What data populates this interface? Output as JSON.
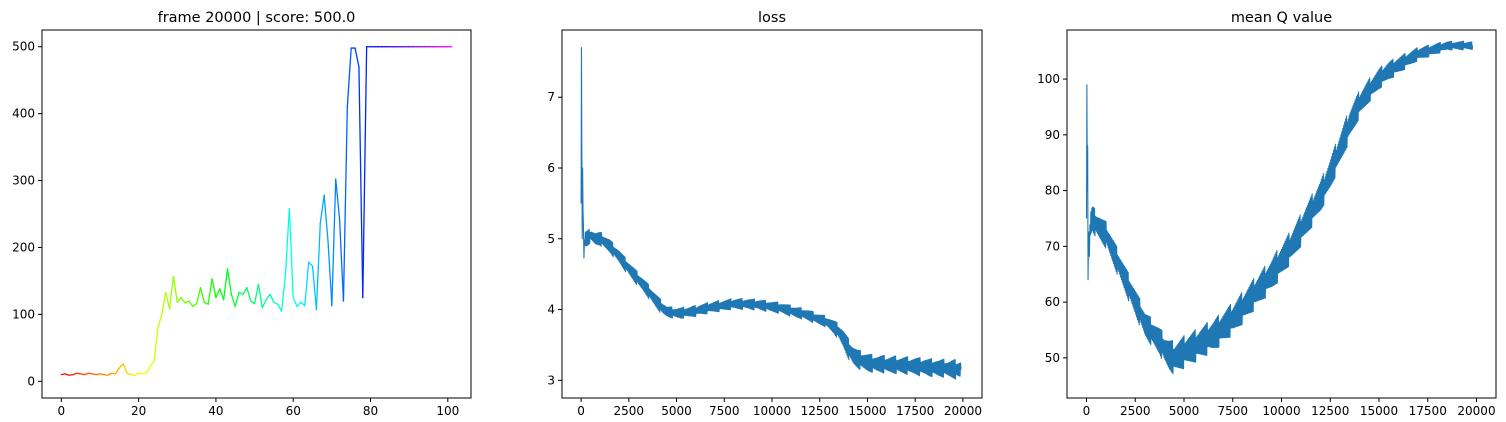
{
  "chart_data": [
    {
      "type": "line",
      "title": "frame 20000 | score: 500.0",
      "xlabel": "",
      "ylabel": "",
      "xlim": [
        -5,
        106
      ],
      "ylim": [
        -25,
        525
      ],
      "xticks": [
        0,
        20,
        40,
        60,
        80,
        100
      ],
      "xtick_labels": [
        "0",
        "20",
        "40",
        "60",
        "80",
        "100"
      ],
      "yticks": [
        0,
        100,
        200,
        300,
        400,
        500
      ],
      "ytick_labels": [
        "0",
        "100",
        "200",
        "300",
        "400",
        "500"
      ],
      "grid": false,
      "color_scheme": "hsv gradient (red to magenta) along x",
      "x": [
        0,
        1,
        2,
        3,
        4,
        5,
        6,
        7,
        8,
        9,
        10,
        11,
        12,
        13,
        14,
        15,
        16,
        17,
        18,
        19,
        20,
        21,
        22,
        23,
        24,
        25,
        26,
        27,
        28,
        29,
        30,
        31,
        32,
        33,
        34,
        35,
        36,
        37,
        38,
        39,
        40,
        41,
        42,
        43,
        44,
        45,
        46,
        47,
        48,
        49,
        50,
        51,
        52,
        53,
        54,
        55,
        56,
        57,
        58,
        59,
        60,
        61,
        62,
        63,
        64,
        65,
        66,
        67,
        68,
        69,
        70,
        71,
        72,
        73,
        74,
        75,
        76,
        77,
        78,
        79,
        80,
        81,
        82,
        83,
        84,
        85,
        86,
        87,
        88,
        89,
        90,
        91,
        92,
        93,
        94,
        95,
        96,
        97,
        98,
        99,
        100,
        101
      ],
      "values": [
        10,
        11,
        9,
        10,
        12,
        11,
        10,
        12,
        11,
        10,
        11,
        10,
        9,
        12,
        11,
        20,
        26,
        12,
        10,
        9,
        12,
        11,
        13,
        22,
        30,
        80,
        100,
        133,
        108,
        157,
        118,
        125,
        117,
        120,
        112,
        116,
        140,
        118,
        115,
        153,
        125,
        138,
        122,
        168,
        130,
        112,
        133,
        130,
        140,
        120,
        116,
        145,
        110,
        122,
        130,
        118,
        115,
        105,
        160,
        258,
        125,
        112,
        118,
        113,
        178,
        172,
        107,
        236,
        278,
        210,
        113,
        302,
        242,
        120,
        410,
        498,
        498,
        470,
        125,
        500,
        500,
        500,
        500,
        500,
        500,
        500,
        500,
        500,
        500,
        500,
        500,
        500,
        500,
        500,
        500,
        500,
        500,
        500,
        500,
        500,
        500,
        500
      ]
    },
    {
      "type": "line",
      "title": "loss",
      "xlabel": "",
      "ylabel": "",
      "xlim": [
        -1000,
        21000
      ],
      "ylim": [
        2.75,
        7.95
      ],
      "xticks": [
        0,
        2500,
        5000,
        7500,
        10000,
        12500,
        15000,
        17500,
        20000
      ],
      "xtick_labels": [
        "0",
        "2500",
        "5000",
        "7500",
        "10000",
        "12500",
        "15000",
        "17500",
        "20000"
      ],
      "yticks": [
        3,
        4,
        5,
        6,
        7
      ],
      "ytick_labels": [
        "3",
        "4",
        "5",
        "6",
        "7"
      ],
      "grid": false,
      "color": "#1f77b4",
      "series": [
        {
          "name": "loss",
          "x": [
            0,
            20,
            40,
            60,
            80,
            100,
            150,
            200,
            300,
            500,
            750,
            1000,
            1250,
            1500,
            1750,
            2000,
            2250,
            2500,
            2750,
            3000,
            3250,
            3500,
            3750,
            4000,
            4250,
            4500,
            4750,
            5000,
            5250,
            5500,
            5750,
            6000,
            6250,
            6500,
            6750,
            7000,
            7250,
            7500,
            7750,
            8000,
            8250,
            8500,
            8750,
            9000,
            9250,
            9500,
            9750,
            10000,
            10250,
            10500,
            10750,
            11000,
            11250,
            11500,
            11750,
            12000,
            12250,
            12500,
            12750,
            13000,
            13250,
            13500,
            13750,
            14000,
            14250,
            14500,
            14750,
            15000,
            15250,
            15500,
            15750,
            16000,
            16250,
            16500,
            16750,
            17000,
            17250,
            17500,
            17750,
            18000,
            18250,
            18500,
            18750,
            19000,
            19250,
            19500,
            19750,
            19900
          ],
          "values": [
            5.5,
            7.7,
            6.2,
            5.0,
            6.0,
            5.4,
            4.8,
            5.0,
            5.0,
            5.05,
            5.0,
            5.0,
            4.95,
            4.9,
            4.82,
            4.75,
            4.66,
            4.58,
            4.5,
            4.42,
            4.35,
            4.27,
            4.18,
            4.1,
            4.02,
            3.97,
            3.96,
            3.95,
            3.95,
            3.96,
            3.97,
            3.98,
            4.0,
            4.01,
            4.03,
            4.04,
            4.05,
            4.06,
            4.07,
            4.08,
            4.08,
            4.08,
            4.08,
            4.07,
            4.07,
            4.06,
            4.05,
            4.04,
            4.03,
            4.02,
            4.0,
            3.98,
            3.96,
            3.95,
            3.93,
            3.91,
            3.88,
            3.86,
            3.84,
            3.8,
            3.75,
            3.68,
            3.58,
            3.45,
            3.35,
            3.3,
            3.27,
            3.25,
            3.24,
            3.23,
            3.23,
            3.22,
            3.22,
            3.22,
            3.21,
            3.21,
            3.2,
            3.2,
            3.19,
            3.19,
            3.18,
            3.18,
            3.17,
            3.17,
            3.16,
            3.16,
            3.15,
            3.15
          ],
          "band": [
            0.0,
            0.0,
            0.0,
            0.0,
            0.0,
            0.0,
            0.1,
            0.12,
            0.12,
            0.1,
            0.1,
            0.1,
            0.1,
            0.1,
            0.1,
            0.1,
            0.1,
            0.1,
            0.1,
            0.1,
            0.1,
            0.1,
            0.1,
            0.1,
            0.1,
            0.08,
            0.08,
            0.08,
            0.08,
            0.08,
            0.08,
            0.08,
            0.08,
            0.08,
            0.08,
            0.08,
            0.08,
            0.08,
            0.08,
            0.08,
            0.08,
            0.08,
            0.08,
            0.08,
            0.08,
            0.08,
            0.08,
            0.08,
            0.08,
            0.08,
            0.08,
            0.08,
            0.08,
            0.08,
            0.08,
            0.08,
            0.08,
            0.08,
            0.08,
            0.09,
            0.1,
            0.12,
            0.14,
            0.15,
            0.15,
            0.14,
            0.14,
            0.14,
            0.13,
            0.13,
            0.13,
            0.13,
            0.13,
            0.13,
            0.13,
            0.13,
            0.13,
            0.13,
            0.13,
            0.13,
            0.13,
            0.13,
            0.13,
            0.13,
            0.13,
            0.14,
            0.14,
            0.14
          ]
        }
      ]
    },
    {
      "type": "line",
      "title": "mean Q value",
      "xlabel": "",
      "ylabel": "",
      "xlim": [
        -1000,
        21000
      ],
      "ylim": [
        42.8,
        108.8
      ],
      "xticks": [
        0,
        2500,
        5000,
        7500,
        10000,
        12500,
        15000,
        17500,
        20000
      ],
      "xtick_labels": [
        "0",
        "2500",
        "5000",
        "7500",
        "10000",
        "12500",
        "15000",
        "17500",
        "20000"
      ],
      "yticks": [
        50,
        60,
        70,
        80,
        90,
        100
      ],
      "ytick_labels": [
        "50",
        "60",
        "70",
        "80",
        "90",
        "100"
      ],
      "grid": false,
      "color": "#1f77b4",
      "series": [
        {
          "name": "mean Q",
          "x": [
            0,
            20,
            40,
            60,
            80,
            100,
            150,
            200,
            300,
            500,
            750,
            1000,
            1250,
            1500,
            1750,
            2000,
            2250,
            2500,
            2750,
            3000,
            3250,
            3500,
            3750,
            4000,
            4250,
            4500,
            4750,
            5000,
            5500,
            6000,
            6500,
            7000,
            7500,
            8000,
            8500,
            9000,
            9500,
            10000,
            10500,
            11000,
            11500,
            12000,
            12500,
            13000,
            13500,
            14000,
            14500,
            15000,
            15500,
            16000,
            16500,
            17000,
            17500,
            18000,
            18500,
            19000,
            19500,
            19800
          ],
          "values": [
            75,
            99,
            80,
            88,
            64,
            72,
            70,
            74,
            75,
            74,
            73,
            72,
            70,
            68,
            66,
            64,
            62,
            60,
            58,
            56,
            55,
            54,
            53,
            51.5,
            50.5,
            50,
            50.5,
            51,
            52,
            53,
            54,
            55.5,
            57,
            59,
            61,
            63,
            65,
            67.5,
            70,
            73,
            76,
            79,
            83,
            87.5,
            92,
            95.5,
            98,
            100,
            101.5,
            102.5,
            103.5,
            104.5,
            105,
            105.5,
            106,
            106,
            106,
            106
          ],
          "band": [
            0,
            0,
            0,
            0,
            0,
            2,
            2.5,
            2.5,
            2.5,
            2.5,
            2.5,
            2.5,
            2.5,
            2.5,
            2.5,
            2.5,
            2.5,
            2.5,
            2.5,
            2.5,
            2.5,
            2.5,
            2.5,
            2.8,
            3,
            3,
            3,
            3,
            3,
            3,
            3,
            3,
            3,
            3,
            3,
            3,
            3,
            3,
            3,
            3,
            3,
            3,
            3,
            3,
            3,
            2.5,
            2.2,
            2,
            1.8,
            1.6,
            1.4,
            1.2,
            1.1,
            1,
            0.8,
            0.8,
            0.8,
            0.8
          ]
        }
      ]
    }
  ]
}
